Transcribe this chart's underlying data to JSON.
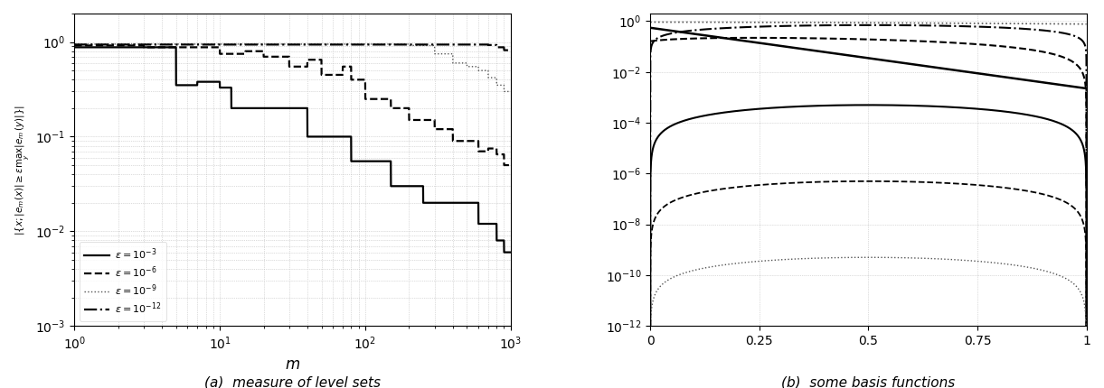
{
  "fig_width": 12.21,
  "fig_height": 4.3,
  "background_color": "#ffffff",
  "subplot_a": {
    "title": "(a)  measure of level sets",
    "xlabel": "$m$",
    "xlim": [
      1,
      1000
    ],
    "ylim": [
      0.001,
      2.0
    ],
    "yticks": [
      0.001,
      0.01,
      0.1,
      1.0
    ],
    "lines": [
      {
        "label": "$\\epsilon = 10^{-3}$",
        "lw": 1.6,
        "ls": "-",
        "color": "#000000"
      },
      {
        "label": "$\\epsilon = 10^{-6}$",
        "lw": 1.6,
        "ls": "--",
        "color": "#000000"
      },
      {
        "label": "$\\epsilon = 10^{-9}$",
        "lw": 1.0,
        "ls": ":",
        "color": "#555555"
      },
      {
        "label": "$\\epsilon = 10^{-12}$",
        "lw": 1.6,
        "ls": "-.",
        "color": "#000000"
      }
    ]
  },
  "subplot_b": {
    "title": "(b)  some basis functions",
    "xlim": [
      0,
      1
    ],
    "ylim": [
      1e-12,
      2.0
    ],
    "xticks": [
      0,
      0.25,
      0.5,
      0.75,
      1
    ],
    "xtick_labels": [
      "0",
      "0.25",
      "0.5",
      "0.75",
      "1"
    ]
  }
}
